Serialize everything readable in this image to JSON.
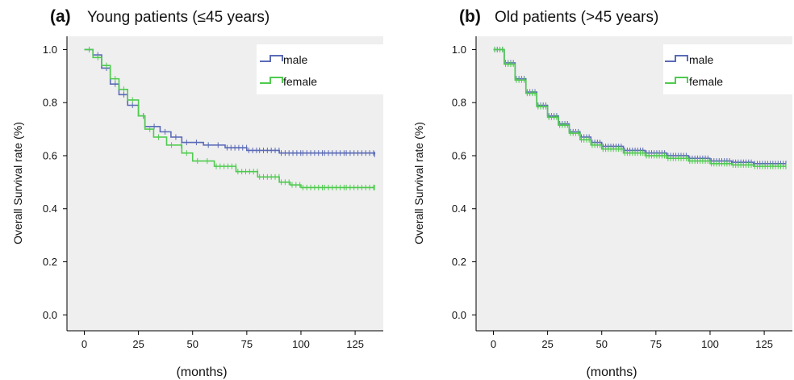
{
  "colors": {
    "plot_background": "#efefef",
    "male": "#5b6bb6",
    "female": "#4fcb4f",
    "axis": "#000000"
  },
  "chart_data": [
    {
      "type": "line",
      "label": "(a)",
      "title": "Young patients (≤45 years)",
      "xlabel": "(months)",
      "ylabel": "Overall Survival rate (%)",
      "xlim": [
        -8,
        138
      ],
      "ylim": [
        -0.06,
        1.05
      ],
      "xticks": [
        0,
        25,
        50,
        75,
        100,
        125
      ],
      "yticks": [
        "0.0",
        "0.2",
        "0.4",
        "0.6",
        "0.8",
        "1.0"
      ],
      "grid": false,
      "legend_position": "top-right",
      "series": [
        {
          "name": "male",
          "color": "#5b6bb6",
          "x": [
            0,
            4,
            8,
            12,
            16,
            20,
            25,
            28,
            30,
            35,
            40,
            45,
            55,
            65,
            75,
            80,
            90,
            100,
            110,
            120,
            134
          ],
          "y": [
            1.0,
            0.98,
            0.93,
            0.87,
            0.83,
            0.79,
            0.75,
            0.71,
            0.71,
            0.69,
            0.67,
            0.65,
            0.64,
            0.63,
            0.62,
            0.62,
            0.61,
            0.61,
            0.61,
            0.61,
            0.605
          ]
        },
        {
          "name": "female",
          "color": "#4fcb4f",
          "x": [
            0,
            4,
            8,
            12,
            16,
            20,
            25,
            28,
            32,
            38,
            45,
            50,
            60,
            70,
            80,
            90,
            95,
            100,
            110,
            120,
            134
          ],
          "y": [
            1.0,
            0.97,
            0.94,
            0.89,
            0.85,
            0.81,
            0.75,
            0.7,
            0.67,
            0.64,
            0.61,
            0.58,
            0.56,
            0.54,
            0.52,
            0.5,
            0.49,
            0.48,
            0.48,
            0.48,
            0.48
          ]
        }
      ]
    },
    {
      "type": "line",
      "label": "(b)",
      "title": "Old patients (>45 years)",
      "xlabel": "(months)",
      "ylabel": "Overall Survival rate (%)",
      "xlim": [
        -8,
        138
      ],
      "ylim": [
        -0.06,
        1.05
      ],
      "xticks": [
        0,
        25,
        50,
        75,
        100,
        125
      ],
      "yticks": [
        "0.0",
        "0.2",
        "0.4",
        "0.6",
        "0.8",
        "1.0"
      ],
      "grid": false,
      "legend_position": "top-right",
      "series": [
        {
          "name": "male",
          "color": "#5b6bb6",
          "x": [
            0,
            5,
            10,
            15,
            20,
            25,
            30,
            35,
            40,
            45,
            50,
            60,
            70,
            80,
            90,
            100,
            110,
            120,
            135
          ],
          "y": [
            1.0,
            0.95,
            0.89,
            0.84,
            0.79,
            0.75,
            0.72,
            0.69,
            0.67,
            0.65,
            0.635,
            0.62,
            0.61,
            0.6,
            0.59,
            0.58,
            0.575,
            0.57,
            0.57
          ]
        },
        {
          "name": "female",
          "color": "#4fcb4f",
          "x": [
            0,
            5,
            10,
            15,
            20,
            25,
            30,
            35,
            40,
            45,
            50,
            60,
            70,
            80,
            90,
            100,
            110,
            120,
            135
          ],
          "y": [
            1.0,
            0.945,
            0.885,
            0.835,
            0.785,
            0.745,
            0.715,
            0.685,
            0.66,
            0.64,
            0.625,
            0.61,
            0.6,
            0.59,
            0.58,
            0.57,
            0.565,
            0.56,
            0.56
          ]
        }
      ]
    }
  ]
}
